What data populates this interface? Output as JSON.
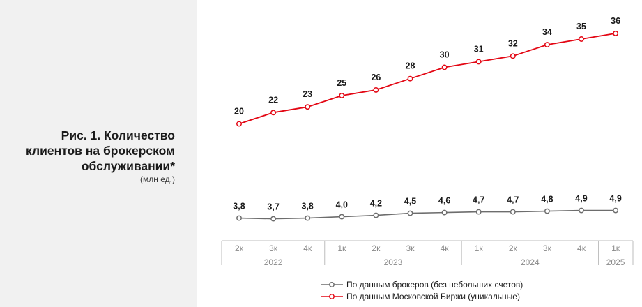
{
  "caption": {
    "title": "Рис. 1. Количество клиентов на брокерском обслуживании*",
    "unit": "(млн ед.)"
  },
  "chart_data": {
    "type": "line",
    "title": "Рис. 1. Количество клиентов на брокерском обслуживании*",
    "ylabel": "(млн ед.)",
    "categories": [
      "2к",
      "3к",
      "4к",
      "1к",
      "2к",
      "3к",
      "4к",
      "1к",
      "2к",
      "3к",
      "4к",
      "1к"
    ],
    "years": [
      {
        "label": "2022",
        "from": 0,
        "to": 2
      },
      {
        "label": "2023",
        "from": 3,
        "to": 6
      },
      {
        "label": "2024",
        "from": 7,
        "to": 10
      },
      {
        "label": "2025",
        "from": 11,
        "to": 11
      }
    ],
    "series": [
      {
        "name": "По данным брокеров (без небольших счетов)",
        "color": "#6d6d6d",
        "values": [
          3.8,
          3.7,
          3.8,
          4.0,
          4.2,
          4.5,
          4.6,
          4.7,
          4.7,
          4.8,
          4.9,
          4.9
        ],
        "labels": [
          "3,8",
          "3,7",
          "3,8",
          "4,0",
          "4,2",
          "4,5",
          "4,6",
          "4,7",
          "4,7",
          "4,8",
          "4,9",
          "4,9"
        ]
      },
      {
        "name": "По данным Московской Биржи (уникальные)",
        "color": "#e30613",
        "values": [
          20,
          22,
          23,
          25,
          26,
          28,
          30,
          31,
          32,
          34,
          35,
          36
        ],
        "labels": [
          "20",
          "22",
          "23",
          "25",
          "26",
          "28",
          "30",
          "31",
          "32",
          "34",
          "35",
          "36"
        ]
      }
    ],
    "legend": "bottom-right",
    "grid": false
  }
}
